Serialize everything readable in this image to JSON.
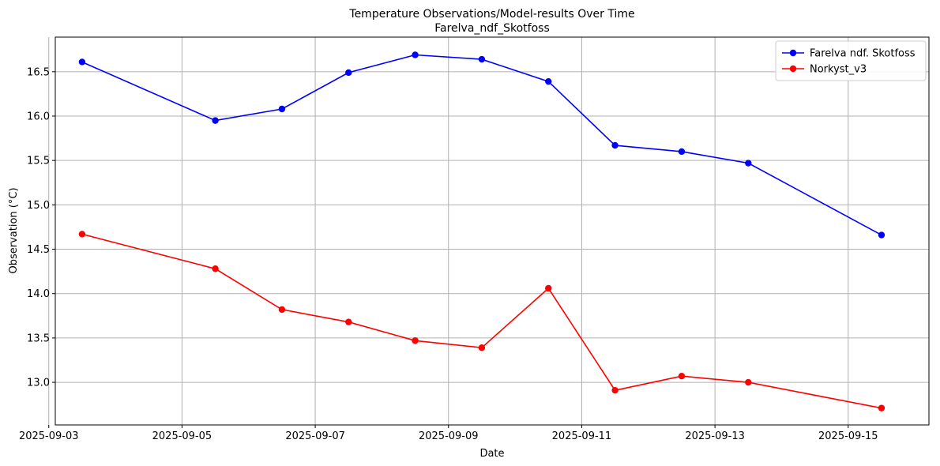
{
  "chart_data": {
    "type": "line",
    "title": "Temperature Observations/Model-results Over Time",
    "subtitle": "Farelva_ndf_Skotfoss",
    "xlabel": "Date",
    "ylabel": "Observation (°C)",
    "grid": true,
    "legend_position": "top-right",
    "xlim": [
      "2025-09-03T02:21",
      "2025-09-16T05:05"
    ],
    "ylim": [
      12.52,
      16.89
    ],
    "x_ticks": [
      "2025-09-03",
      "2025-09-05",
      "2025-09-07",
      "2025-09-09",
      "2025-09-11",
      "2025-09-13",
      "2025-09-15"
    ],
    "y_ticks": [
      "13.0",
      "13.5",
      "14.0",
      "14.5",
      "15.0",
      "15.5",
      "16.0",
      "16.5"
    ],
    "x": [
      "2025-09-03T12:00",
      "2025-09-05T12:00",
      "2025-09-06T12:00",
      "2025-09-07T12:00",
      "2025-09-08T12:00",
      "2025-09-09T12:00",
      "2025-09-10T12:00",
      "2025-09-11T12:00",
      "2025-09-12T12:00",
      "2025-09-13T12:00",
      "2025-09-15T12:00"
    ],
    "series": [
      {
        "name": "Farelva ndf. Skotfoss",
        "color": "#0000ff",
        "values": [
          16.61,
          15.95,
          16.08,
          16.49,
          16.69,
          16.64,
          16.39,
          15.67,
          15.6,
          15.47,
          14.66
        ]
      },
      {
        "name": "Norkyst_v3",
        "color": "#ff0000",
        "values": [
          14.67,
          14.28,
          13.82,
          13.68,
          13.47,
          13.39,
          14.06,
          12.91,
          13.07,
          13.0,
          12.71
        ]
      }
    ]
  }
}
